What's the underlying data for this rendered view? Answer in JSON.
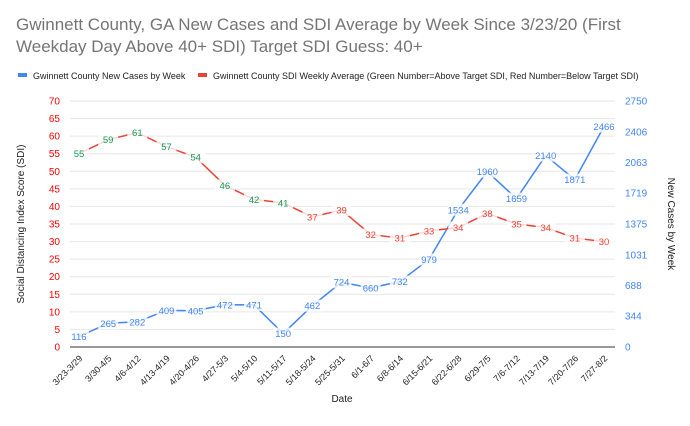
{
  "chart_data": {
    "type": "line",
    "title": "Gwinnett County, GA New Cases and SDI Average by Week Since 3/23/20 (First Weekday Day Above 40+ SDI) Target SDI Guess: 40+",
    "xlabel": "Date",
    "ylabel_left": "Social Distancing Index Score (SDI)",
    "ylabel_right": "New Cases by Week",
    "legend_position": "top",
    "grid": true,
    "categories": [
      "3/23-3/29",
      "3/30-4/5",
      "4/6-4/12",
      "4/13-4/19",
      "4/20-4/26",
      "4/27-5/3",
      "5/4-5/10",
      "5/11-5/17",
      "5/18-5/24",
      "5/25-5/31",
      "6/1-6/7",
      "6/8-6/14",
      "6/15-6/21",
      "6/22-6/28",
      "6/29-7/5",
      "7/6-7/12",
      "7/13-7/19",
      "7/20-7/26",
      "7/27-8/2"
    ],
    "left_axis": {
      "range": [
        0,
        70
      ],
      "ticks": [
        "0",
        "5",
        "10",
        "15",
        "20",
        "25",
        "30",
        "35",
        "40",
        "45",
        "50",
        "55",
        "60",
        "65",
        "70"
      ],
      "color": "#ff0000"
    },
    "right_axis": {
      "range": [
        0,
        2750
      ],
      "ticks": [
        "0",
        "344",
        "688",
        "1031",
        "1375",
        "1719",
        "2063",
        "2406",
        "2750"
      ],
      "color": "#4285f4"
    },
    "target_sdi": 40,
    "series": [
      {
        "name": "Gwinnett County New Cases by Week",
        "axis": "right",
        "color": "#4285f4",
        "values": [
          116,
          265,
          282,
          409,
          405,
          472,
          471,
          150,
          462,
          724,
          660,
          732,
          979,
          1534,
          1960,
          1659,
          2140,
          1871,
          2466
        ]
      },
      {
        "name": "Gwinnett County SDI Weekly Average (Green Number=Above Target SDI, Red Number=Below Target SDI)",
        "axis": "left",
        "color": "#ea4335",
        "values": [
          55,
          59,
          61,
          57,
          54,
          46,
          42,
          41,
          37,
          39,
          32,
          31,
          33,
          34,
          38,
          35,
          34,
          31,
          30
        ],
        "label_colors": {
          "above": "#0f9d58",
          "below": "#ea4335"
        }
      }
    ]
  }
}
